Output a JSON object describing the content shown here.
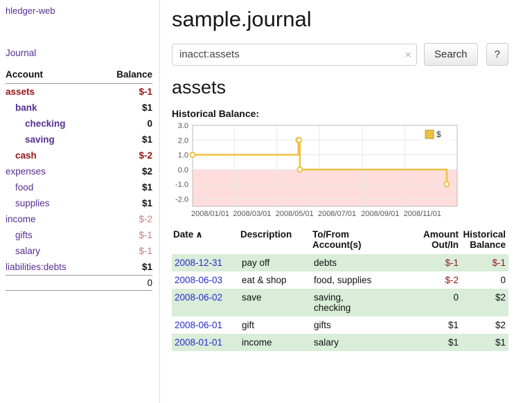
{
  "colors": {
    "purple_link": "#552e91",
    "negative_dark": "#941414",
    "negative_light": "#c57f7f",
    "date_link_blue": "#2a2ac8",
    "row_stripe_green": "#d9edd9",
    "chart_line_yellow": "#edc240",
    "chart_negative_pink": "#ffdddd"
  },
  "sidebar": {
    "brand": "hledger-web",
    "journal_link": "Journal",
    "headers": {
      "account": "Account",
      "balance": "Balance"
    },
    "accounts": [
      {
        "name": "assets",
        "indent": 0,
        "bold": true,
        "name_color": "darkred",
        "balance": "$-1",
        "balance_color": "darkred"
      },
      {
        "name": "bank",
        "indent": 1,
        "bold": true,
        "name_color": "purple",
        "balance": "$1",
        "balance_color": "black"
      },
      {
        "name": "checking",
        "indent": 2,
        "bold": true,
        "name_color": "purple",
        "balance": "0",
        "balance_color": "black"
      },
      {
        "name": "saving",
        "indent": 2,
        "bold": true,
        "name_color": "purple",
        "balance": "$1",
        "balance_color": "black"
      },
      {
        "name": "cash",
        "indent": 1,
        "bold": true,
        "name_color": "darkred",
        "balance": "$-2",
        "balance_color": "darkred"
      },
      {
        "name": "expenses",
        "indent": 0,
        "bold": false,
        "name_color": "purple",
        "balance": "$2",
        "balance_color": "black"
      },
      {
        "name": "food",
        "indent": 1,
        "bold": false,
        "name_color": "purple",
        "balance": "$1",
        "balance_color": "black"
      },
      {
        "name": "supplies",
        "indent": 1,
        "bold": false,
        "name_color": "purple",
        "balance": "$1",
        "balance_color": "black"
      },
      {
        "name": "income",
        "indent": 0,
        "bold": false,
        "name_color": "purple",
        "balance": "$-2",
        "balance_color": "lightred"
      },
      {
        "name": "gifts",
        "indent": 1,
        "bold": false,
        "name_color": "purple",
        "balance": "$-1",
        "balance_color": "lightred"
      },
      {
        "name": "salary",
        "indent": 1,
        "bold": false,
        "name_color": "purple",
        "balance": "$-1",
        "balance_color": "lightred"
      },
      {
        "name": "liabilities:debts",
        "indent": 0,
        "bold": false,
        "name_color": "purple",
        "balance": "$1",
        "balance_color": "black"
      }
    ],
    "total": "0"
  },
  "main": {
    "title": "sample.journal",
    "search": {
      "value": "inacct:assets",
      "clear_icon": "×",
      "button_label": "Search",
      "help_label": "?"
    },
    "account_heading": "assets"
  },
  "chart_data": {
    "type": "line",
    "title": "Historical Balance:",
    "legend": {
      "label": "$",
      "position": "top-right"
    },
    "grid": true,
    "x_domain_days": [
      0,
      380
    ],
    "ylim": [
      -2.5,
      3
    ],
    "negative_region_fill": "#ffdddd",
    "yticks": [
      {
        "label": "3.0",
        "value": 3
      },
      {
        "label": "2.0",
        "value": 2
      },
      {
        "label": "1.0",
        "value": 1
      },
      {
        "label": "0.0",
        "value": 0
      },
      {
        "label": "-1.0",
        "value": -1
      },
      {
        "label": "-2.0",
        "value": -2
      }
    ],
    "xticks": [
      {
        "label": "2008/01/01",
        "day": 0
      },
      {
        "label": "2008/03/01",
        "day": 60
      },
      {
        "label": "2008/05/01",
        "day": 121
      },
      {
        "label": "2008/07/01",
        "day": 182
      },
      {
        "label": "2008/09/01",
        "day": 244
      },
      {
        "label": "2008/11/01",
        "day": 305
      }
    ],
    "series": [
      {
        "name": "$",
        "color": "#edc240",
        "step": true,
        "points": [
          {
            "date": "2008-01-01",
            "day": 0,
            "value": 1
          },
          {
            "date": "2008-06-01",
            "day": 152,
            "value": 2
          },
          {
            "date": "2008-06-02",
            "day": 153,
            "value": 2
          },
          {
            "date": "2008-06-03",
            "day": 154,
            "value": 0
          },
          {
            "date": "2008-12-31",
            "day": 365,
            "value": -1
          }
        ]
      }
    ]
  },
  "table": {
    "sort_icon": "∧",
    "headers": [
      "Date",
      "Description",
      "To/From\nAccount(s)",
      "Amount\nOut/In",
      "Historical\nBalance"
    ],
    "rows": [
      {
        "date": "2008-12-31",
        "description": "pay off",
        "accounts": "debts",
        "amount": "$-1",
        "amount_neg": true,
        "balance": "$-1",
        "balance_neg": true
      },
      {
        "date": "2008-06-03",
        "description": "eat & shop",
        "accounts": "food, supplies",
        "amount": "$-2",
        "amount_neg": true,
        "balance": "0",
        "balance_neg": false
      },
      {
        "date": "2008-06-02",
        "description": "save",
        "accounts": "saving,\nchecking",
        "amount": "0",
        "amount_neg": false,
        "balance": "$2",
        "balance_neg": false
      },
      {
        "date": "2008-06-01",
        "description": "gift",
        "accounts": "gifts",
        "amount": "$1",
        "amount_neg": false,
        "balance": "$2",
        "balance_neg": false
      },
      {
        "date": "2008-01-01",
        "description": "income",
        "accounts": "salary",
        "amount": "$1",
        "amount_neg": false,
        "balance": "$1",
        "balance_neg": false
      }
    ]
  }
}
